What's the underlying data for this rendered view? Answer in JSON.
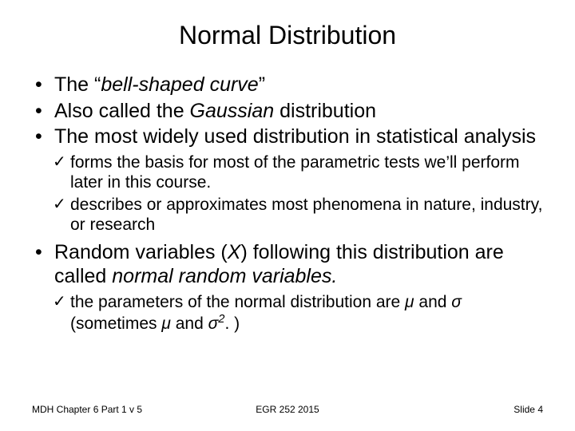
{
  "title": "Normal Distribution",
  "bullets": {
    "b1_pre": "The “",
    "b1_it": "bell-shaped curve",
    "b1_post": "”",
    "b2_pre": "Also called the ",
    "b2_it": "Gaussian",
    "b2_post": " distribution",
    "b3": "The most widely used distribution in statistical analysis",
    "s1": "forms the basis for most of the parametric tests we’ll perform later in this course.",
    "s2": "describes or approximates most phenomena in nature, industry, or research",
    "b4_pre": "Random variables (",
    "b4_x": "X",
    "b4_mid": ") following this distribution are called ",
    "b4_it": "normal random variables.",
    "s3_pre": "the parameters of the normal distribution are ",
    "s3_mu": "μ",
    "s3_and": " and ",
    "s3_sig": "σ",
    "s3_mid": " (sometimes ",
    "s3_mu2": "μ",
    "s3_and2": " and ",
    "s3_sig2": "σ",
    "s3_sup": "2",
    "s3_post": ". )"
  },
  "footer": {
    "left": "MDH Chapter 6 Part 1 v 5",
    "center": "EGR 252 2015",
    "right": "Slide  4"
  },
  "colors": {
    "background": "#ffffff",
    "text": "#000000"
  },
  "fontsizes": {
    "title": 32,
    "main": 25,
    "sub": 21,
    "footer": 12
  }
}
